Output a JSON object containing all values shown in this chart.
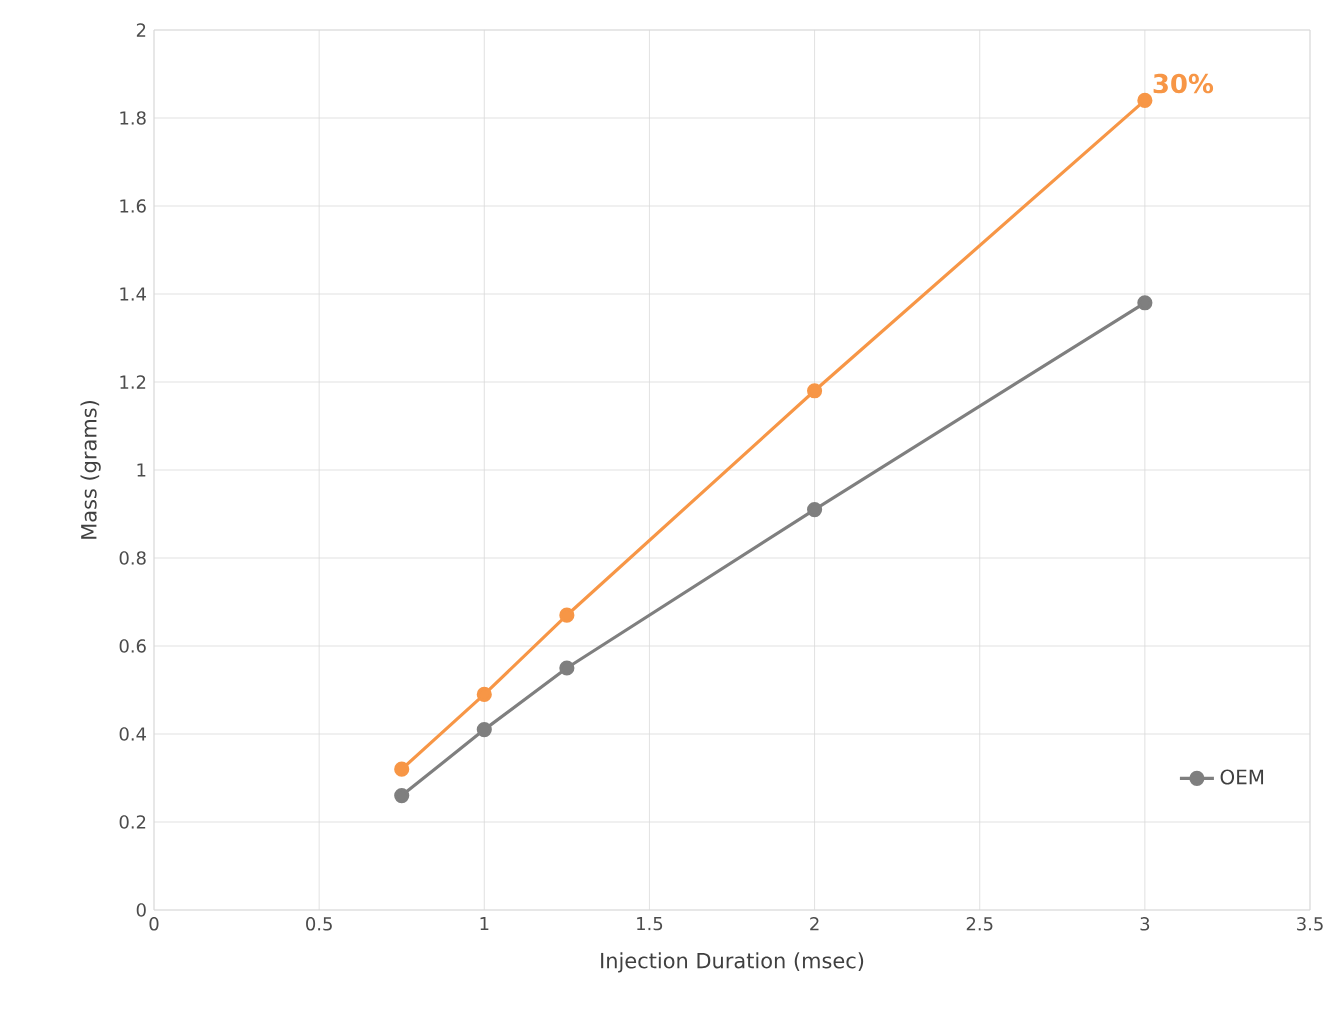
{
  "chart_data": {
    "type": "line",
    "xlabel": "Injection Duration  (msec)",
    "ylabel": "Mass  (grams)",
    "x": [
      0.75,
      1,
      1.25,
      2,
      3
    ],
    "series": [
      {
        "color": "#f79646",
        "values": [
          0.32,
          0.49,
          0.67,
          1.18,
          1.84
        ]
      },
      {
        "name": "OEM",
        "color": "#7f7f7f",
        "values": [
          0.26,
          0.41,
          0.55,
          0.91,
          1.38
        ]
      }
    ],
    "xlim": [
      0,
      3.5
    ],
    "ylim": [
      0,
      2
    ],
    "xticks": [
      0,
      0.5,
      1,
      1.5,
      2,
      2.5,
      3,
      3.5
    ],
    "yticks": [
      0,
      0.2,
      0.4,
      0.6,
      0.8,
      1,
      1.2,
      1.4,
      1.6,
      1.8,
      2
    ],
    "grid": true,
    "legend": "bottom right",
    "marker": "circle",
    "line_style": "solid",
    "annotations": [
      {
        "text": "30%",
        "x": 3,
        "y": 1.84
      }
    ]
  }
}
